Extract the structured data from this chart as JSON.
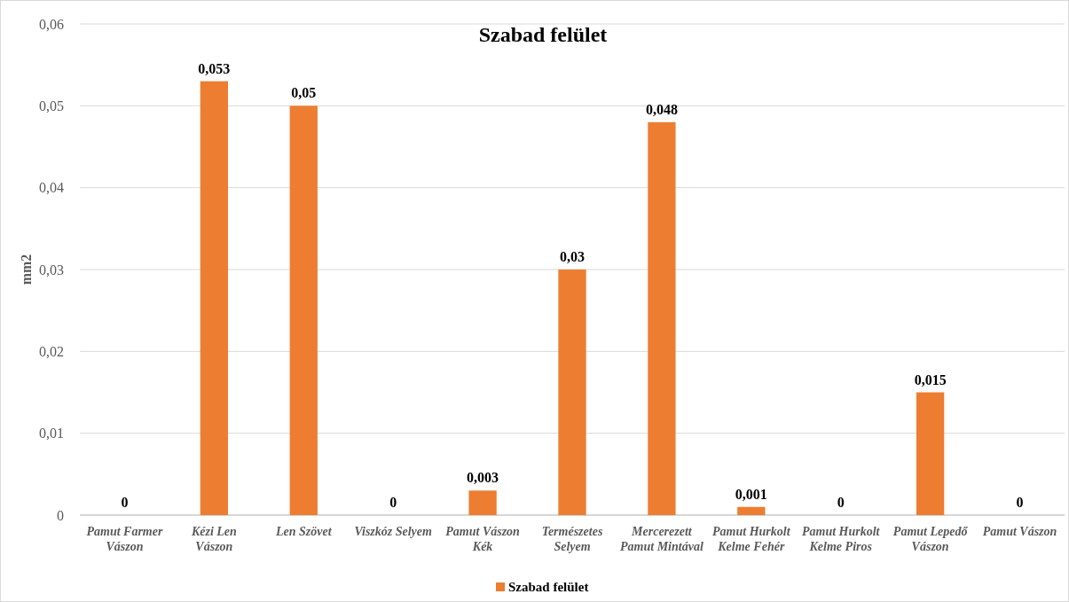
{
  "chart_data": {
    "type": "bar",
    "title": "Szabad felület",
    "ylabel": "mm2",
    "categories": [
      "Pamut Farmer Vászon",
      "Kézi Len Vászon",
      "Len Szövet",
      "Viszkóz Selyem",
      "Pamut Vászon Kék",
      "Természetes Selyem",
      "Mercerezett Pamut Mintával",
      "Pamut Hurkolt Kelme Fehér",
      "Pamut Hurkolt Kelme Piros",
      "Pamut Lepedő Vászon",
      "Pamut Vászon"
    ],
    "series": [
      {
        "name": "Szabad felület",
        "color": "#ed7d31",
        "values": [
          0,
          0.053,
          0.05,
          0,
          0.003,
          0.03,
          0.048,
          0.001,
          0,
          0.015,
          0
        ],
        "value_labels": [
          "0",
          "0,053",
          "0,05",
          "0",
          "0,003",
          "0,03",
          "0,048",
          "0,001",
          "0",
          "0,015",
          "0"
        ]
      }
    ],
    "ylim": [
      0,
      0.06
    ],
    "yticks": [
      {
        "value": 0,
        "label": "0"
      },
      {
        "value": 0.01,
        "label": "0,01"
      },
      {
        "value": 0.02,
        "label": "0,02"
      },
      {
        "value": 0.03,
        "label": "0,03"
      },
      {
        "value": 0.04,
        "label": "0,04"
      },
      {
        "value": 0.05,
        "label": "0,05"
      },
      {
        "value": 0.06,
        "label": "0,06"
      }
    ],
    "grid": "y",
    "legend": "bottom"
  }
}
